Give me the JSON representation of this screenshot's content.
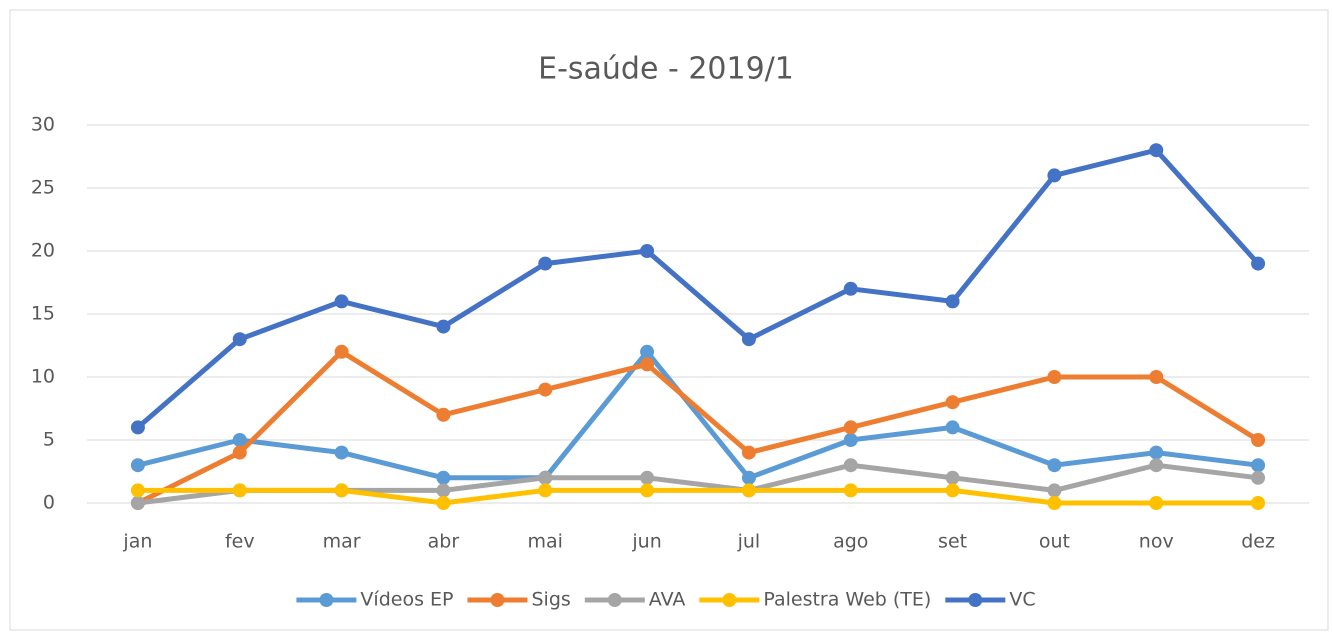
{
  "chart_data": {
    "type": "line",
    "title": "E-saúde - 2019/1",
    "categories": [
      "jan",
      "fev",
      "mar",
      "abr",
      "mai",
      "jun",
      "jul",
      "ago",
      "set",
      "out",
      "nov",
      "dez"
    ],
    "series": [
      {
        "name": "Vídeos EP",
        "color": "#5b9bd5",
        "values": [
          3,
          5,
          4,
          2,
          2,
          12,
          2,
          5,
          6,
          3,
          4,
          3
        ]
      },
      {
        "name": "Sigs",
        "color": "#ed7d31",
        "values": [
          0,
          4,
          12,
          7,
          9,
          11,
          4,
          6,
          8,
          10,
          10,
          5
        ]
      },
      {
        "name": "AVA",
        "color": "#a5a5a5",
        "values": [
          0,
          1,
          1,
          1,
          2,
          2,
          1,
          3,
          2,
          1,
          3,
          2
        ]
      },
      {
        "name": "Palestra Web (TE)",
        "color": "#ffc000",
        "values": [
          1,
          1,
          1,
          0,
          1,
          1,
          1,
          1,
          1,
          0,
          0,
          0
        ]
      },
      {
        "name": "VC",
        "color": "#4472c4",
        "values": [
          6,
          13,
          16,
          14,
          19,
          20,
          13,
          17,
          16,
          26,
          28,
          19
        ]
      }
    ],
    "ylim": [
      0,
      30
    ],
    "yticks": [
      0,
      5,
      10,
      15,
      20,
      25,
      30
    ],
    "grid": true,
    "legend": "bottom"
  }
}
